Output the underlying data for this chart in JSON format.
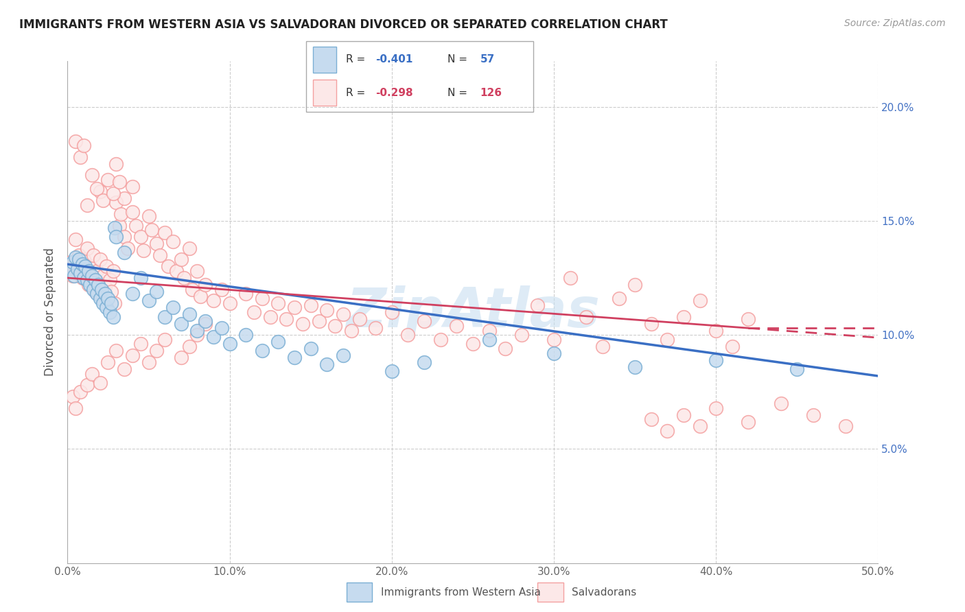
{
  "title": "IMMIGRANTS FROM WESTERN ASIA VS SALVADORAN DIVORCED OR SEPARATED CORRELATION CHART",
  "source": "Source: ZipAtlas.com",
  "ylabel": "Divorced or Separated",
  "xlim": [
    0.0,
    0.5
  ],
  "ylim": [
    0.0,
    0.22
  ],
  "yticks": [
    0.05,
    0.1,
    0.15,
    0.2
  ],
  "ytick_labels": [
    "5.0%",
    "10.0%",
    "15.0%",
    "20.0%"
  ],
  "xticks": [
    0.0,
    0.1,
    0.2,
    0.3,
    0.4,
    0.5
  ],
  "xtick_labels": [
    "0.0%",
    "10.0%",
    "20.0%",
    "30.0%",
    "40.0%",
    "50.0%"
  ],
  "blue_color": "#7bafd4",
  "pink_color": "#f4a0a0",
  "blue_fill": "#c6dbef",
  "pink_fill": "#fce8e8",
  "watermark": "ZipAtlas",
  "blue_line_x": [
    0.0,
    0.5
  ],
  "blue_line_y": [
    0.131,
    0.082
  ],
  "pink_line_x": [
    0.0,
    0.42
  ],
  "pink_line_y": [
    0.125,
    0.103
  ],
  "blue_scatter": [
    [
      0.002,
      0.128
    ],
    [
      0.003,
      0.132
    ],
    [
      0.004,
      0.126
    ],
    [
      0.005,
      0.134
    ],
    [
      0.006,
      0.129
    ],
    [
      0.007,
      0.133
    ],
    [
      0.008,
      0.127
    ],
    [
      0.009,
      0.131
    ],
    [
      0.01,
      0.125
    ],
    [
      0.011,
      0.13
    ],
    [
      0.012,
      0.124
    ],
    [
      0.013,
      0.128
    ],
    [
      0.014,
      0.122
    ],
    [
      0.015,
      0.126
    ],
    [
      0.016,
      0.12
    ],
    [
      0.017,
      0.124
    ],
    [
      0.018,
      0.118
    ],
    [
      0.019,
      0.122
    ],
    [
      0.02,
      0.116
    ],
    [
      0.021,
      0.12
    ],
    [
      0.022,
      0.114
    ],
    [
      0.023,
      0.118
    ],
    [
      0.024,
      0.112
    ],
    [
      0.025,
      0.116
    ],
    [
      0.026,
      0.11
    ],
    [
      0.027,
      0.114
    ],
    [
      0.028,
      0.108
    ],
    [
      0.029,
      0.147
    ],
    [
      0.03,
      0.143
    ],
    [
      0.035,
      0.136
    ],
    [
      0.04,
      0.118
    ],
    [
      0.045,
      0.125
    ],
    [
      0.05,
      0.115
    ],
    [
      0.055,
      0.119
    ],
    [
      0.06,
      0.108
    ],
    [
      0.065,
      0.112
    ],
    [
      0.07,
      0.105
    ],
    [
      0.075,
      0.109
    ],
    [
      0.08,
      0.102
    ],
    [
      0.085,
      0.106
    ],
    [
      0.09,
      0.099
    ],
    [
      0.095,
      0.103
    ],
    [
      0.1,
      0.096
    ],
    [
      0.11,
      0.1
    ],
    [
      0.12,
      0.093
    ],
    [
      0.13,
      0.097
    ],
    [
      0.14,
      0.09
    ],
    [
      0.15,
      0.094
    ],
    [
      0.16,
      0.087
    ],
    [
      0.17,
      0.091
    ],
    [
      0.2,
      0.084
    ],
    [
      0.22,
      0.088
    ],
    [
      0.26,
      0.098
    ],
    [
      0.3,
      0.092
    ],
    [
      0.35,
      0.086
    ],
    [
      0.4,
      0.089
    ],
    [
      0.45,
      0.085
    ]
  ],
  "pink_scatter": [
    [
      0.002,
      0.132
    ],
    [
      0.003,
      0.126
    ],
    [
      0.004,
      0.131
    ],
    [
      0.005,
      0.142
    ],
    [
      0.006,
      0.128
    ],
    [
      0.007,
      0.135
    ],
    [
      0.008,
      0.129
    ],
    [
      0.009,
      0.125
    ],
    [
      0.01,
      0.133
    ],
    [
      0.011,
      0.127
    ],
    [
      0.012,
      0.138
    ],
    [
      0.013,
      0.122
    ],
    [
      0.014,
      0.13
    ],
    [
      0.015,
      0.124
    ],
    [
      0.016,
      0.135
    ],
    [
      0.017,
      0.119
    ],
    [
      0.018,
      0.128
    ],
    [
      0.019,
      0.123
    ],
    [
      0.02,
      0.133
    ],
    [
      0.021,
      0.118
    ],
    [
      0.022,
      0.126
    ],
    [
      0.023,
      0.121
    ],
    [
      0.024,
      0.13
    ],
    [
      0.025,
      0.116
    ],
    [
      0.026,
      0.124
    ],
    [
      0.027,
      0.119
    ],
    [
      0.028,
      0.128
    ],
    [
      0.029,
      0.114
    ],
    [
      0.03,
      0.158
    ],
    [
      0.032,
      0.148
    ],
    [
      0.033,
      0.153
    ],
    [
      0.035,
      0.143
    ],
    [
      0.037,
      0.138
    ],
    [
      0.04,
      0.154
    ],
    [
      0.042,
      0.148
    ],
    [
      0.045,
      0.143
    ],
    [
      0.047,
      0.137
    ],
    [
      0.05,
      0.152
    ],
    [
      0.052,
      0.146
    ],
    [
      0.055,
      0.14
    ],
    [
      0.057,
      0.135
    ],
    [
      0.06,
      0.145
    ],
    [
      0.062,
      0.13
    ],
    [
      0.065,
      0.141
    ],
    [
      0.067,
      0.128
    ],
    [
      0.07,
      0.133
    ],
    [
      0.072,
      0.125
    ],
    [
      0.075,
      0.138
    ],
    [
      0.077,
      0.12
    ],
    [
      0.08,
      0.128
    ],
    [
      0.082,
      0.117
    ],
    [
      0.085,
      0.122
    ],
    [
      0.09,
      0.115
    ],
    [
      0.095,
      0.12
    ],
    [
      0.1,
      0.114
    ],
    [
      0.11,
      0.118
    ],
    [
      0.115,
      0.11
    ],
    [
      0.12,
      0.116
    ],
    [
      0.125,
      0.108
    ],
    [
      0.13,
      0.114
    ],
    [
      0.135,
      0.107
    ],
    [
      0.14,
      0.112
    ],
    [
      0.145,
      0.105
    ],
    [
      0.15,
      0.113
    ],
    [
      0.155,
      0.106
    ],
    [
      0.16,
      0.111
    ],
    [
      0.165,
      0.104
    ],
    [
      0.17,
      0.109
    ],
    [
      0.175,
      0.102
    ],
    [
      0.18,
      0.107
    ],
    [
      0.19,
      0.103
    ],
    [
      0.2,
      0.11
    ],
    [
      0.21,
      0.1
    ],
    [
      0.22,
      0.106
    ],
    [
      0.23,
      0.098
    ],
    [
      0.24,
      0.104
    ],
    [
      0.25,
      0.096
    ],
    [
      0.26,
      0.102
    ],
    [
      0.27,
      0.094
    ],
    [
      0.28,
      0.1
    ],
    [
      0.29,
      0.113
    ],
    [
      0.3,
      0.098
    ],
    [
      0.31,
      0.125
    ],
    [
      0.32,
      0.108
    ],
    [
      0.33,
      0.095
    ],
    [
      0.34,
      0.116
    ],
    [
      0.35,
      0.122
    ],
    [
      0.36,
      0.105
    ],
    [
      0.37,
      0.098
    ],
    [
      0.38,
      0.108
    ],
    [
      0.39,
      0.115
    ],
    [
      0.4,
      0.102
    ],
    [
      0.41,
      0.095
    ],
    [
      0.42,
      0.107
    ],
    [
      0.005,
      0.185
    ],
    [
      0.008,
      0.178
    ],
    [
      0.01,
      0.183
    ],
    [
      0.015,
      0.17
    ],
    [
      0.02,
      0.163
    ],
    [
      0.025,
      0.168
    ],
    [
      0.03,
      0.175
    ],
    [
      0.035,
      0.16
    ],
    [
      0.04,
      0.165
    ],
    [
      0.012,
      0.157
    ],
    [
      0.018,
      0.164
    ],
    [
      0.022,
      0.159
    ],
    [
      0.028,
      0.162
    ],
    [
      0.032,
      0.167
    ],
    [
      0.003,
      0.073
    ],
    [
      0.005,
      0.068
    ],
    [
      0.008,
      0.075
    ],
    [
      0.012,
      0.078
    ],
    [
      0.015,
      0.083
    ],
    [
      0.02,
      0.079
    ],
    [
      0.025,
      0.088
    ],
    [
      0.03,
      0.093
    ],
    [
      0.035,
      0.085
    ],
    [
      0.04,
      0.091
    ],
    [
      0.045,
      0.096
    ],
    [
      0.05,
      0.088
    ],
    [
      0.055,
      0.093
    ],
    [
      0.06,
      0.098
    ],
    [
      0.07,
      0.09
    ],
    [
      0.075,
      0.095
    ],
    [
      0.08,
      0.1
    ],
    [
      0.085,
      0.105
    ],
    [
      0.36,
      0.063
    ],
    [
      0.37,
      0.058
    ],
    [
      0.38,
      0.065
    ],
    [
      0.39,
      0.06
    ],
    [
      0.4,
      0.068
    ],
    [
      0.42,
      0.062
    ],
    [
      0.44,
      0.07
    ],
    [
      0.46,
      0.065
    ],
    [
      0.48,
      0.06
    ]
  ]
}
